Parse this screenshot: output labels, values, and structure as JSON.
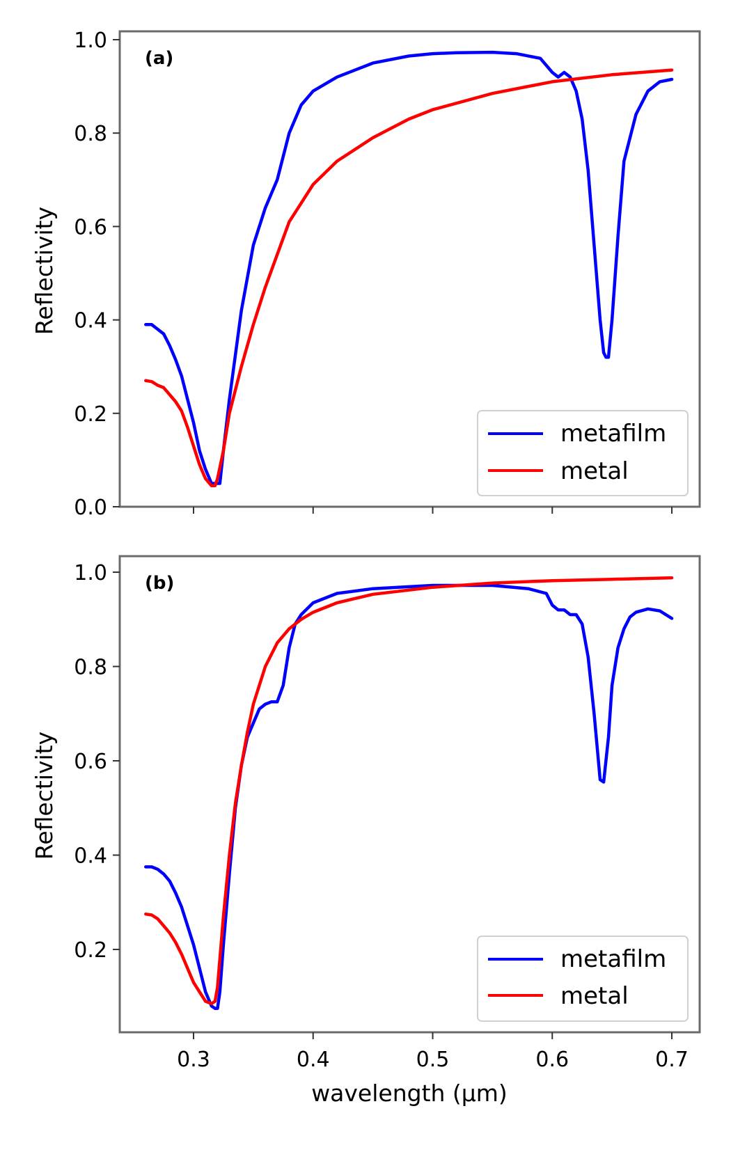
{
  "figure": {
    "xlabel": "wavelength (μm)",
    "x_ticks": [
      "0.3",
      "0.4",
      "0.5",
      "0.6",
      "0.7"
    ],
    "xlim": [
      0.24,
      0.72
    ]
  },
  "chart_data": [
    {
      "type": "line",
      "panel_label": "(a)",
      "ylabel": "Reflectivity",
      "xlabel": "",
      "xlim": [
        0.24,
        0.72
      ],
      "ylim": [
        0.0,
        1.0
      ],
      "x_ticks": [
        0.3,
        0.4,
        0.5,
        0.6,
        0.7
      ],
      "y_ticks": [
        0.0,
        0.2,
        0.4,
        0.6,
        0.8,
        1.0
      ],
      "y_tick_labels": [
        "0.0",
        "0.2",
        "0.4",
        "0.6",
        "0.8",
        "1.0"
      ],
      "legend_position": "bottom-right",
      "series": [
        {
          "name": "metafilm",
          "color": "#0000ff",
          "x": [
            0.26,
            0.265,
            0.27,
            0.275,
            0.28,
            0.285,
            0.29,
            0.295,
            0.3,
            0.305,
            0.31,
            0.315,
            0.318,
            0.32,
            0.322,
            0.325,
            0.33,
            0.34,
            0.35,
            0.36,
            0.37,
            0.38,
            0.39,
            0.4,
            0.42,
            0.45,
            0.48,
            0.5,
            0.52,
            0.55,
            0.57,
            0.59,
            0.6,
            0.605,
            0.61,
            0.615,
            0.62,
            0.625,
            0.63,
            0.635,
            0.64,
            0.643,
            0.645,
            0.647,
            0.65,
            0.655,
            0.66,
            0.67,
            0.68,
            0.69,
            0.7
          ],
          "values": [
            0.39,
            0.39,
            0.38,
            0.37,
            0.345,
            0.315,
            0.28,
            0.23,
            0.18,
            0.12,
            0.08,
            0.05,
            0.05,
            0.05,
            0.05,
            0.12,
            0.23,
            0.42,
            0.56,
            0.64,
            0.7,
            0.8,
            0.86,
            0.89,
            0.92,
            0.95,
            0.965,
            0.97,
            0.972,
            0.973,
            0.97,
            0.96,
            0.93,
            0.92,
            0.93,
            0.92,
            0.89,
            0.83,
            0.72,
            0.56,
            0.4,
            0.33,
            0.32,
            0.32,
            0.4,
            0.58,
            0.74,
            0.84,
            0.89,
            0.91,
            0.915
          ]
        },
        {
          "name": "metal",
          "color": "#ff0000",
          "x": [
            0.26,
            0.265,
            0.27,
            0.275,
            0.28,
            0.285,
            0.29,
            0.295,
            0.3,
            0.305,
            0.31,
            0.315,
            0.318,
            0.32,
            0.325,
            0.33,
            0.34,
            0.35,
            0.36,
            0.37,
            0.38,
            0.4,
            0.42,
            0.45,
            0.48,
            0.5,
            0.55,
            0.6,
            0.65,
            0.7
          ],
          "values": [
            0.27,
            0.268,
            0.26,
            0.255,
            0.24,
            0.225,
            0.205,
            0.17,
            0.13,
            0.09,
            0.06,
            0.045,
            0.045,
            0.06,
            0.12,
            0.2,
            0.3,
            0.39,
            0.47,
            0.54,
            0.61,
            0.69,
            0.74,
            0.79,
            0.83,
            0.85,
            0.885,
            0.91,
            0.925,
            0.935
          ]
        }
      ]
    },
    {
      "type": "line",
      "panel_label": "(b)",
      "ylabel": "Reflectivity",
      "xlabel": "wavelength (μm)",
      "xlim": [
        0.24,
        0.72
      ],
      "ylim": [
        0.05,
        1.03
      ],
      "x_ticks": [
        0.3,
        0.4,
        0.5,
        0.6,
        0.7
      ],
      "y_ticks": [
        0.2,
        0.4,
        0.6,
        0.8,
        1.0
      ],
      "y_tick_labels": [
        "0.2",
        "0.4",
        "0.6",
        "0.8",
        "1.0"
      ],
      "legend_position": "bottom-right",
      "series": [
        {
          "name": "metafilm",
          "color": "#0000ff",
          "x": [
            0.26,
            0.265,
            0.27,
            0.275,
            0.28,
            0.285,
            0.29,
            0.295,
            0.3,
            0.305,
            0.31,
            0.315,
            0.318,
            0.32,
            0.322,
            0.325,
            0.33,
            0.335,
            0.34,
            0.345,
            0.35,
            0.355,
            0.36,
            0.365,
            0.37,
            0.375,
            0.38,
            0.385,
            0.39,
            0.4,
            0.42,
            0.45,
            0.5,
            0.55,
            0.58,
            0.595,
            0.6,
            0.605,
            0.61,
            0.615,
            0.62,
            0.625,
            0.63,
            0.635,
            0.64,
            0.643,
            0.647,
            0.65,
            0.655,
            0.66,
            0.665,
            0.67,
            0.68,
            0.69,
            0.7
          ],
          "values": [
            0.375,
            0.375,
            0.37,
            0.36,
            0.345,
            0.32,
            0.29,
            0.25,
            0.21,
            0.16,
            0.11,
            0.08,
            0.075,
            0.075,
            0.11,
            0.21,
            0.36,
            0.5,
            0.59,
            0.65,
            0.68,
            0.71,
            0.72,
            0.725,
            0.725,
            0.76,
            0.84,
            0.89,
            0.91,
            0.935,
            0.955,
            0.965,
            0.972,
            0.972,
            0.965,
            0.955,
            0.93,
            0.92,
            0.92,
            0.91,
            0.91,
            0.89,
            0.82,
            0.7,
            0.56,
            0.555,
            0.65,
            0.76,
            0.84,
            0.88,
            0.905,
            0.915,
            0.922,
            0.918,
            0.902
          ]
        },
        {
          "name": "metal",
          "color": "#ff0000",
          "x": [
            0.26,
            0.265,
            0.27,
            0.275,
            0.28,
            0.285,
            0.29,
            0.295,
            0.3,
            0.305,
            0.31,
            0.315,
            0.318,
            0.32,
            0.322,
            0.325,
            0.33,
            0.335,
            0.34,
            0.345,
            0.35,
            0.36,
            0.37,
            0.38,
            0.39,
            0.4,
            0.42,
            0.45,
            0.5,
            0.55,
            0.6,
            0.65,
            0.7
          ],
          "values": [
            0.275,
            0.273,
            0.265,
            0.25,
            0.235,
            0.215,
            0.19,
            0.16,
            0.13,
            0.11,
            0.09,
            0.085,
            0.09,
            0.12,
            0.18,
            0.27,
            0.4,
            0.51,
            0.59,
            0.66,
            0.72,
            0.8,
            0.85,
            0.88,
            0.9,
            0.915,
            0.935,
            0.953,
            0.968,
            0.977,
            0.982,
            0.985,
            0.988
          ]
        }
      ]
    }
  ]
}
